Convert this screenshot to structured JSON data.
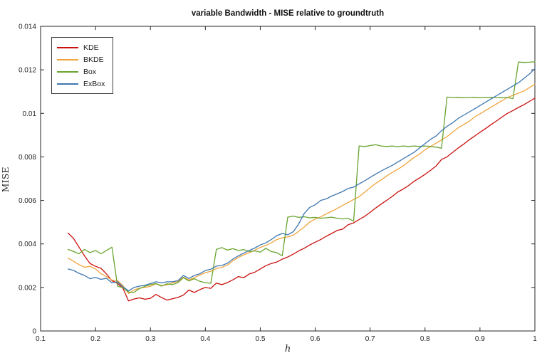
{
  "chart_data": {
    "type": "line",
    "title": "variable Bandwidth - MISE relative to groundtruth",
    "xlabel": "h",
    "ylabel": "MISE",
    "xlim": [
      0.1,
      1
    ],
    "ylim": [
      0,
      0.014
    ],
    "xticks": [
      0.1,
      0.2,
      0.3,
      0.4,
      0.5,
      0.6,
      0.7,
      0.8,
      0.9,
      1
    ],
    "xtick_labels": [
      "0.1",
      "0.2",
      "0.3",
      "0.4",
      "0.5",
      "0.6",
      "0.7",
      "0.8",
      "0.9",
      "1"
    ],
    "yticks": [
      0,
      0.002,
      0.004,
      0.006,
      0.008,
      0.01,
      0.012,
      0.014
    ],
    "ytick_labels": [
      "0",
      "0.002",
      "0.004",
      "0.006",
      "0.008",
      "0.01",
      "0.012",
      "0.014"
    ],
    "grid": false,
    "legend_position": "top-left",
    "axis_color": "#262626",
    "x": [
      0.15,
      0.16,
      0.17,
      0.18,
      0.19,
      0.2,
      0.21,
      0.22,
      0.23,
      0.24,
      0.25,
      0.26,
      0.27,
      0.28,
      0.29,
      0.3,
      0.31,
      0.32,
      0.33,
      0.34,
      0.35,
      0.36,
      0.37,
      0.38,
      0.39,
      0.4,
      0.41,
      0.42,
      0.43,
      0.44,
      0.45,
      0.46,
      0.47,
      0.48,
      0.49,
      0.5,
      0.51,
      0.52,
      0.53,
      0.54,
      0.55,
      0.56,
      0.57,
      0.58,
      0.59,
      0.6,
      0.61,
      0.62,
      0.63,
      0.64,
      0.65,
      0.66,
      0.67,
      0.68,
      0.69,
      0.7,
      0.71,
      0.72,
      0.73,
      0.74,
      0.75,
      0.76,
      0.77,
      0.78,
      0.79,
      0.8,
      0.81,
      0.82,
      0.83,
      0.84,
      0.85,
      0.86,
      0.87,
      0.88,
      0.89,
      0.9,
      0.91,
      0.92,
      0.93,
      0.94,
      0.95,
      0.96,
      0.97,
      0.98,
      0.99,
      1.0
    ],
    "series": [
      {
        "name": "KDE",
        "color": "#c8100e",
        "values": [
          0.0045,
          0.00425,
          0.00385,
          0.00345,
          0.0031,
          0.00297,
          0.00288,
          0.00262,
          0.00231,
          0.00219,
          0.00196,
          0.00138,
          0.00147,
          0.00152,
          0.00146,
          0.0015,
          0.00168,
          0.00154,
          0.00142,
          0.00148,
          0.00154,
          0.00165,
          0.00188,
          0.00177,
          0.0019,
          0.002,
          0.00196,
          0.0022,
          0.00213,
          0.00222,
          0.00235,
          0.0025,
          0.00245,
          0.00262,
          0.0027,
          0.00285,
          0.003,
          0.0031,
          0.00317,
          0.0033,
          0.0034,
          0.00353,
          0.00368,
          0.0038,
          0.00395,
          0.00408,
          0.0042,
          0.00435,
          0.00448,
          0.00462,
          0.00468,
          0.00488,
          0.00497,
          0.00512,
          0.00527,
          0.00545,
          0.00565,
          0.00583,
          0.006,
          0.00618,
          0.00638,
          0.00652,
          0.00668,
          0.00688,
          0.00703,
          0.0072,
          0.00738,
          0.00758,
          0.00788,
          0.008,
          0.0082,
          0.0084,
          0.00858,
          0.00878,
          0.00895,
          0.00913,
          0.0093,
          0.00948,
          0.00965,
          0.00983,
          0.01,
          0.01013,
          0.01027,
          0.0104,
          0.01055,
          0.0107
        ]
      },
      {
        "name": "BKDE",
        "color": "#f0a43c",
        "values": [
          0.00335,
          0.0032,
          0.00305,
          0.00293,
          0.00297,
          0.00285,
          0.00263,
          0.0025,
          0.00234,
          0.00231,
          0.00208,
          0.00172,
          0.00188,
          0.00197,
          0.002,
          0.00205,
          0.00217,
          0.00209,
          0.00212,
          0.00221,
          0.00228,
          0.00247,
          0.00234,
          0.00245,
          0.00257,
          0.00268,
          0.00274,
          0.00287,
          0.00292,
          0.00303,
          0.00322,
          0.00338,
          0.0035,
          0.0036,
          0.00371,
          0.00384,
          0.00393,
          0.00405,
          0.0042,
          0.00428,
          0.00432,
          0.0044,
          0.00458,
          0.00478,
          0.005,
          0.00515,
          0.00524,
          0.00538,
          0.0055,
          0.00563,
          0.00577,
          0.0059,
          0.00604,
          0.00617,
          0.00638,
          0.00658,
          0.00678,
          0.00694,
          0.00712,
          0.00728,
          0.00743,
          0.00758,
          0.00778,
          0.00797,
          0.00813,
          0.00833,
          0.00848,
          0.00863,
          0.00878,
          0.00893,
          0.00913,
          0.00933,
          0.00948,
          0.00963,
          0.00983,
          0.00998,
          0.01013,
          0.01028,
          0.01043,
          0.01058,
          0.01073,
          0.01083,
          0.01093,
          0.01103,
          0.01118,
          0.01135
        ]
      },
      {
        "name": "Box",
        "color": "#68a42e",
        "values": [
          0.00375,
          0.00365,
          0.00355,
          0.00375,
          0.0036,
          0.0037,
          0.00355,
          0.0037,
          0.00385,
          0.00206,
          0.00199,
          0.00179,
          0.00177,
          0.00195,
          0.00205,
          0.00213,
          0.00218,
          0.00206,
          0.00217,
          0.00213,
          0.00222,
          0.00245,
          0.0023,
          0.0024,
          0.00228,
          0.00222,
          0.00219,
          0.00375,
          0.00383,
          0.00372,
          0.00378,
          0.0037,
          0.00374,
          0.00365,
          0.00368,
          0.00362,
          0.0038,
          0.00365,
          0.0036,
          0.00345,
          0.00523,
          0.00528,
          0.00522,
          0.00525,
          0.0052,
          0.00522,
          0.00518,
          0.0052,
          0.00523,
          0.00518,
          0.00515,
          0.00517,
          0.00505,
          0.0085,
          0.00848,
          0.00852,
          0.00856,
          0.0085,
          0.00848,
          0.0085,
          0.00847,
          0.0085,
          0.00848,
          0.0085,
          0.00848,
          0.0085,
          0.00848,
          0.00845,
          0.0084,
          0.01075,
          0.01073,
          0.01074,
          0.01072,
          0.01073,
          0.01074,
          0.01072,
          0.01073,
          0.01074,
          0.01073,
          0.01072,
          0.01073,
          0.01068,
          0.01236,
          0.01234,
          0.01235,
          0.01237
        ]
      },
      {
        "name": "ExBox",
        "color": "#3e76b0",
        "values": [
          0.00285,
          0.00278,
          0.00265,
          0.00255,
          0.0024,
          0.00246,
          0.00237,
          0.00242,
          0.00221,
          0.00226,
          0.00203,
          0.00184,
          0.002,
          0.00206,
          0.0021,
          0.00218,
          0.00226,
          0.00221,
          0.00226,
          0.00226,
          0.00231,
          0.00255,
          0.00241,
          0.00255,
          0.00263,
          0.00278,
          0.00284,
          0.00298,
          0.00301,
          0.00311,
          0.0033,
          0.00345,
          0.00358,
          0.0037,
          0.00381,
          0.00395,
          0.00405,
          0.0042,
          0.00438,
          0.00448,
          0.00442,
          0.00456,
          0.00492,
          0.0054,
          0.00568,
          0.0058,
          0.006,
          0.00607,
          0.0062,
          0.0063,
          0.00641,
          0.00655,
          0.00661,
          0.00676,
          0.0069,
          0.00706,
          0.00721,
          0.00735,
          0.00748,
          0.00761,
          0.00776,
          0.00791,
          0.00806,
          0.00821,
          0.00841,
          0.00861,
          0.00881,
          0.00896,
          0.0092,
          0.0094,
          0.00956,
          0.00976,
          0.00991,
          0.01006,
          0.01021,
          0.01036,
          0.01051,
          0.01066,
          0.01081,
          0.01096,
          0.01111,
          0.01126,
          0.01141,
          0.01161,
          0.01181,
          0.01206
        ]
      }
    ]
  }
}
